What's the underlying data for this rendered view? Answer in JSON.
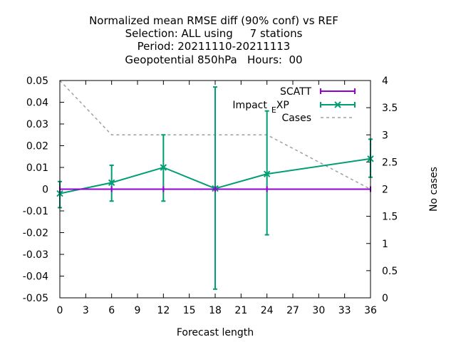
{
  "chart_data": {
    "type": "line",
    "title_lines": [
      "Normalized mean RMSE diff (90% conf) vs REF",
      "Selection: ALL using     7 stations",
      "Period: 20211110-20211113",
      "Geopotential 850hPa   Hours:  00"
    ],
    "xlabel": "Forecast length",
    "ylabel": "",
    "y2label": "No cases",
    "xlim": [
      0,
      36
    ],
    "ylim": [
      -0.05,
      0.05
    ],
    "y2lim": [
      0,
      4
    ],
    "x_ticks": [
      0,
      3,
      6,
      9,
      12,
      15,
      18,
      21,
      24,
      27,
      30,
      33,
      36
    ],
    "y_ticks": [
      -0.05,
      -0.04,
      -0.03,
      -0.02,
      -0.01,
      0,
      0.01,
      0.02,
      0.03,
      0.04,
      0.05
    ],
    "y_tick_labels": [
      "-0.05",
      "-0.04",
      "-0.03",
      "-0.02",
      "-0.01",
      "0",
      "0.01",
      "0.02",
      "0.03",
      "0.04",
      "0.05"
    ],
    "y2_ticks": [
      0,
      0.5,
      1,
      1.5,
      2,
      2.5,
      3,
      3.5,
      4
    ],
    "y2_tick_labels": [
      "0",
      "0.5",
      "1",
      "1.5",
      "2",
      "2.5",
      "3",
      "3.5",
      "4"
    ],
    "grid": false,
    "legend_position": "top-right",
    "series": [
      {
        "name": "SCATT",
        "color": "#9400d3",
        "axis": "y",
        "style": "line-errorbars",
        "x": [
          0,
          6,
          12,
          18,
          24,
          36
        ],
        "y": [
          0,
          0,
          0,
          0,
          0,
          0
        ],
        "err_low": [
          0,
          0,
          0,
          0,
          0,
          0
        ],
        "err_high": [
          0,
          0,
          0,
          0,
          0,
          0
        ]
      },
      {
        "name_parts": [
          "Impact",
          "E",
          "XP"
        ],
        "color": "#009e73",
        "axis": "y",
        "style": "line-errorbars-x",
        "x": [
          0,
          6,
          12,
          18,
          24,
          36
        ],
        "y": [
          -0.002,
          0.003,
          0.01,
          0.0003,
          0.007,
          0.014
        ],
        "err_low": [
          -0.0085,
          -0.0055,
          -0.0055,
          -0.046,
          -0.021,
          0.0055
        ],
        "err_high": [
          0.0035,
          0.011,
          0.025,
          0.047,
          0.036,
          0.023
        ]
      },
      {
        "name": "Cases",
        "color": "#a0a0a0",
        "axis": "y2",
        "style": "dashed",
        "x": [
          0,
          6,
          12,
          18,
          24,
          36
        ],
        "y": [
          4,
          3,
          3,
          3,
          3,
          2
        ]
      }
    ]
  }
}
